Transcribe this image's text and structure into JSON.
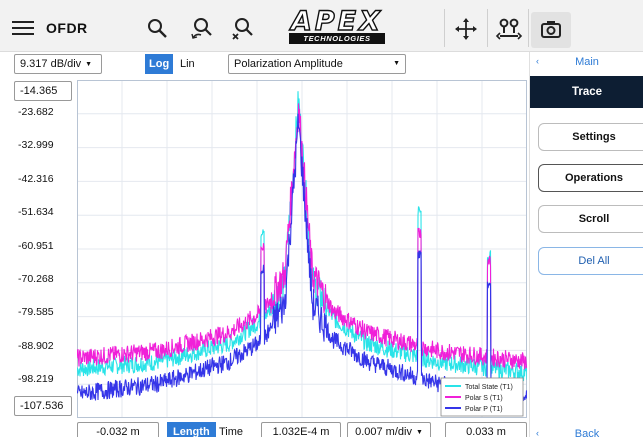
{
  "toolbar": {
    "app_title": "OFDR",
    "logo_text": "APEX",
    "logo_subtext": "TECHNOLOGIES"
  },
  "controls": {
    "scale_value": "9.317 dB/div",
    "log_label": "Log",
    "lin_label": "Lin",
    "active_scale": "Log",
    "display_mode": "Polarization Amplitude"
  },
  "y_axis": {
    "top_value": "-14.365",
    "bottom_value": "-107.536",
    "tick_labels": [
      "-23.682",
      "-32.999",
      "-42.316",
      "-51.634",
      "-60.951",
      "-70.268",
      "-79.585",
      "-88.902",
      "-98.219"
    ]
  },
  "bottom": {
    "start_value": "-0.032 m",
    "length_label": "Length",
    "time_label": "Time",
    "center_value": "1.032E-4 m",
    "scale_value": "0.007 m/div",
    "end_value": "0.033 m"
  },
  "side_panel": {
    "header": "Main",
    "active": "Trace",
    "buttons": [
      "Settings",
      "Operations",
      "Scroll",
      "Del All"
    ],
    "footer": "Back"
  },
  "chart_data": {
    "type": "line",
    "xlabel": "",
    "ylabel": "",
    "xlim": [
      -0.032,
      0.033
    ],
    "ylim": [
      -107.536,
      -14.365
    ],
    "y_scale": "Log",
    "x_unit": "m",
    "y_unit": "dB",
    "grid": true,
    "legend_position": "bottom-right",
    "series": [
      {
        "name": "Total State (T1)",
        "color": "#29e3e8",
        "x": [
          -0.032,
          -0.02,
          -0.01,
          -0.005,
          -0.002,
          0,
          0.002,
          0.005,
          0.01,
          0.02,
          0.033
        ],
        "y": [
          -94,
          -92,
          -87,
          -80,
          -70,
          -20,
          -70,
          -80,
          -87,
          -92,
          -95
        ]
      },
      {
        "name": "Polar S (T1)",
        "color": "#f020d8",
        "x": [
          -0.032,
          -0.02,
          -0.01,
          -0.005,
          -0.002,
          0,
          0.002,
          0.005,
          0.01,
          0.02,
          0.033
        ],
        "y": [
          -91,
          -89,
          -84,
          -78,
          -68,
          -22,
          -68,
          -78,
          -84,
          -89,
          -92
        ]
      },
      {
        "name": "Polar P (T1)",
        "color": "#3535e8",
        "x": [
          -0.032,
          -0.02,
          -0.01,
          -0.005,
          -0.002,
          0,
          0.002,
          0.005,
          0.01,
          0.02,
          0.033
        ],
        "y": [
          -101,
          -98,
          -92,
          -86,
          -76,
          -26,
          -76,
          -86,
          -92,
          -98,
          -102
        ]
      }
    ]
  }
}
